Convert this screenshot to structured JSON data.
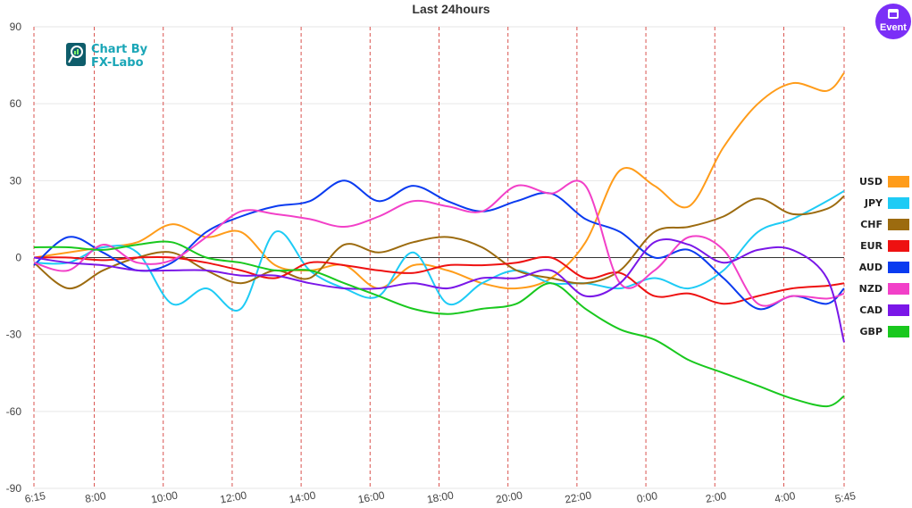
{
  "event_button": {
    "label": "Event",
    "icon": "calendar-icon",
    "color": "#7b2ff7"
  },
  "logo": {
    "line1": "Chart By",
    "line2": "FX-Labo",
    "icon": "chart-magnifier-icon"
  },
  "chart_data": {
    "type": "line",
    "title": "Last 24hours",
    "xlabel": "",
    "ylabel": "",
    "ylim": [
      -90,
      90
    ],
    "yticks": [
      -90,
      -60,
      -30,
      0,
      30,
      60,
      90
    ],
    "xlim": [
      0,
      23.5
    ],
    "xticks": [
      {
        "pos": 0,
        "label": "6:15"
      },
      {
        "pos": 1.75,
        "label": "8:00"
      },
      {
        "pos": 3.75,
        "label": "10:00"
      },
      {
        "pos": 5.75,
        "label": "12:00"
      },
      {
        "pos": 7.75,
        "label": "14:00"
      },
      {
        "pos": 9.75,
        "label": "16:00"
      },
      {
        "pos": 11.75,
        "label": "18:00"
      },
      {
        "pos": 13.75,
        "label": "20:00"
      },
      {
        "pos": 15.75,
        "label": "22:00"
      },
      {
        "pos": 17.75,
        "label": "0:00"
      },
      {
        "pos": 19.75,
        "label": "2:00"
      },
      {
        "pos": 21.75,
        "label": "4:00"
      },
      {
        "pos": 23.5,
        "label": "5:45"
      }
    ],
    "x": [
      0,
      1,
      2,
      3,
      4,
      5,
      6,
      7,
      8,
      9,
      10,
      11,
      12,
      13,
      14,
      15,
      16,
      17,
      18,
      19,
      20,
      21,
      22,
      23,
      23.5
    ],
    "grid": true,
    "legend_position": "right",
    "series": [
      {
        "name": "USD",
        "color": "#ff9c1a",
        "values": [
          0,
          2,
          4,
          6,
          13,
          8,
          10,
          -3,
          -5,
          -3,
          -12,
          -3,
          -5,
          -10,
          -12,
          -8,
          6,
          34,
          28,
          20,
          43,
          60,
          68,
          65,
          72
        ]
      },
      {
        "name": "JPY",
        "color": "#1ecbf5",
        "values": [
          -2,
          -2,
          4,
          2,
          -18,
          -12,
          -20,
          10,
          -5,
          -12,
          -15,
          2,
          -18,
          -10,
          -5,
          -10,
          -10,
          -12,
          -8,
          -12,
          -5,
          10,
          15,
          22,
          26
        ]
      },
      {
        "name": "CHF",
        "color": "#9c6b0f",
        "values": [
          -2,
          -12,
          -5,
          0,
          2,
          -5,
          -10,
          -5,
          -8,
          5,
          2,
          6,
          8,
          4,
          -5,
          -8,
          -10,
          -5,
          10,
          12,
          16,
          23,
          17,
          19,
          24
        ]
      },
      {
        "name": "EUR",
        "color": "#ee1111",
        "values": [
          0,
          0,
          -1,
          0,
          0,
          -2,
          -5,
          -8,
          -2,
          -3,
          -5,
          -6,
          -3,
          -3,
          -2,
          0,
          -8,
          -6,
          -15,
          -14,
          -18,
          -15,
          -12,
          -11,
          -10
        ]
      },
      {
        "name": "AUD",
        "color": "#0a3bf0",
        "values": [
          -3,
          8,
          2,
          -5,
          -2,
          10,
          16,
          20,
          22,
          30,
          22,
          28,
          22,
          18,
          22,
          25,
          15,
          10,
          0,
          3,
          -8,
          -20,
          -15,
          -18,
          -12
        ]
      },
      {
        "name": "NZD",
        "color": "#f240c8",
        "values": [
          -2,
          -5,
          5,
          -2,
          -1,
          8,
          18,
          17,
          15,
          12,
          16,
          22,
          20,
          18,
          28,
          25,
          28,
          -10,
          -5,
          8,
          3,
          -18,
          -15,
          -16,
          -14
        ]
      },
      {
        "name": "CAD",
        "color": "#7a17e8",
        "values": [
          0,
          -2,
          -3,
          -5,
          -5,
          -5,
          -7,
          -7,
          -10,
          -12,
          -12,
          -10,
          -12,
          -8,
          -8,
          -5,
          -15,
          -10,
          6,
          5,
          -2,
          3,
          3,
          -8,
          -33
        ]
      },
      {
        "name": "GBP",
        "color": "#19c81e",
        "values": [
          4,
          4,
          3,
          5,
          6,
          0,
          -2,
          -5,
          -5,
          -10,
          -15,
          -20,
          -22,
          -20,
          -18,
          -10,
          -20,
          -28,
          -32,
          -40,
          -45,
          -50,
          -55,
          -58,
          -54
        ]
      }
    ]
  }
}
